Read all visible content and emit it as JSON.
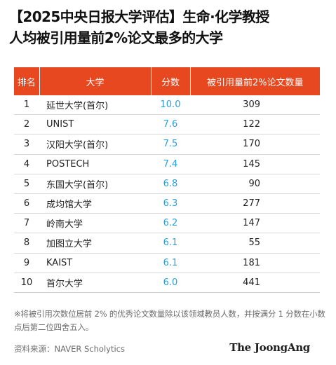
{
  "header": {
    "title_line1": "【2025中央日报大学评估】生命·化学教授",
    "title_line2": "人均被引用量前2%论文最多的大学"
  },
  "table": {
    "columns": [
      "排名",
      "大学",
      "分数",
      "被引用量前2%论文数量"
    ],
    "rows": [
      {
        "rank": "1",
        "university": "延世大学(首尔)",
        "score": "10.0",
        "count": "309"
      },
      {
        "rank": "2",
        "university": "UNIST",
        "score": "7.6",
        "count": "122"
      },
      {
        "rank": "3",
        "university": "汉阳大学(首尔)",
        "score": "7.5",
        "count": "170"
      },
      {
        "rank": "4",
        "university": "POSTECH",
        "score": "7.4",
        "count": "145"
      },
      {
        "rank": "5",
        "university": "东国大学(首尔)",
        "score": "6.8",
        "count": "90"
      },
      {
        "rank": "6",
        "university": "成均馆大学",
        "score": "6.3",
        "count": "277"
      },
      {
        "rank": "7",
        "university": "岭南大学",
        "score": "6.2",
        "count": "147"
      },
      {
        "rank": "8",
        "university": "加图立大学",
        "score": "6.1",
        "count": "55"
      },
      {
        "rank": "9",
        "university": "KAIST",
        "score": "6.1",
        "count": "181"
      },
      {
        "rank": "10",
        "university": "首尔大学",
        "score": "6.0",
        "count": "441"
      }
    ]
  },
  "footer": {
    "note": "※将被引用次数位居前 2% 的优秀论文数量除以该领域教员人数，并按满分 1 分数在小数点后第二位四舍五入。",
    "source": "资料来源：NAVER Scholytics",
    "logo": "The JoongAng"
  },
  "colors": {
    "header_bg": "#e8481f",
    "score_text": "#2a9fd6"
  }
}
